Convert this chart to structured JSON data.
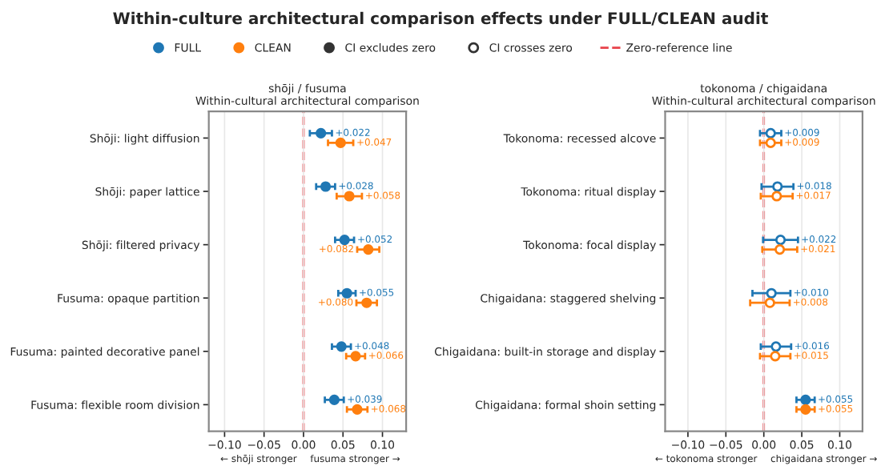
{
  "chart_data": [
    {
      "type": "scatter",
      "orientation": "horizontal",
      "title": "Within-culture architectural comparison effects under FULL/CLEAN audit",
      "subtitle": "shōji / fusuma\nWithin-cultural architectural comparison",
      "categories": [
        "Shōji: light diffusion",
        "Shōji: paper lattice",
        "Shōji: filtered privacy",
        "Fusuma: opaque partition",
        "Fusuma: painted decorative panel",
        "Fusuma: flexible room division"
      ],
      "series": [
        {
          "name": "FULL",
          "color": "#1f77b4",
          "values": [
            0.022,
            0.028,
            0.052,
            0.055,
            0.048,
            0.039
          ],
          "errors": [
            0.014,
            0.012,
            0.012,
            0.011,
            0.012,
            0.012
          ],
          "value_labels": [
            "+0.022",
            "+0.028",
            "+0.052",
            "+0.055",
            "+0.048",
            "+0.039"
          ]
        },
        {
          "name": "CLEAN",
          "color": "#ff7f0e",
          "values": [
            0.047,
            0.058,
            0.082,
            0.08,
            0.066,
            0.068
          ],
          "errors": [
            0.016,
            0.016,
            0.014,
            0.013,
            0.012,
            0.013
          ],
          "value_labels": [
            "+0.047",
            "+0.058",
            "+0.082",
            "+0.080",
            "+0.066",
            "+0.068"
          ]
        },
        {
          "name": "CI excludes zero",
          "color": "#333333",
          "values": [
            null,
            null,
            null,
            null,
            null,
            null
          ]
        },
        {
          "name": "CI crosses zero",
          "color": "#ffffff",
          "values": [
            null,
            null,
            null,
            null,
            null,
            null
          ]
        }
      ],
      "xlim": [
        -0.12,
        0.13
      ],
      "xticks": [
        {
          "value": -0.1,
          "label": "−0.10"
        },
        {
          "value": -0.05,
          "label": "−0.05"
        },
        {
          "value": 0,
          "label": "0.00"
        },
        {
          "value": 0.05,
          "label": "0.05"
        },
        {
          "value": 0.1,
          "label": "0.10"
        }
      ],
      "ref_lines": [
        {
          "axis": "x",
          "value": 0,
          "label": "Zero-reference line",
          "color": "#e8424a",
          "line_style": "dashed"
        }
      ],
      "annotations": [
        "← shōji stronger",
        "fusuma stronger →"
      ],
      "grid": "x",
      "legend": "top",
      "marker": "circle"
    },
    {
      "type": "scatter",
      "orientation": "horizontal",
      "subtitle": "tokonoma / chigaidana\nWithin-cultural architectural comparison",
      "categories": [
        "Tokonoma: recessed alcove",
        "Tokonoma: ritual display",
        "Tokonoma: focal display",
        "Chigaidana: staggered shelving",
        "Chigaidana: built-in storage and display",
        "Chigaidana: formal shoin setting"
      ],
      "series": [
        {
          "color": "#1f77b4",
          "values": [
            0.009,
            0.018,
            0.022,
            0.01,
            0.016,
            0.055
          ],
          "errors": [
            0.014,
            0.021,
            0.023,
            0.025,
            0.02,
            0.012
          ],
          "value_labels": [
            "+0.009",
            "+0.018",
            "+0.022",
            "+0.010",
            "+0.016",
            "+0.055"
          ]
        },
        {
          "color": "#ff7f0e",
          "values": [
            0.009,
            0.017,
            0.021,
            0.008,
            0.015,
            0.055
          ],
          "errors": [
            0.014,
            0.021,
            0.023,
            0.026,
            0.02,
            0.012
          ],
          "value_labels": [
            "+0.009",
            "+0.017",
            "+0.021",
            "+0.008",
            "+0.015",
            "+0.055"
          ]
        }
      ],
      "xlim": [
        -0.13,
        0.13
      ],
      "xticks": [
        {
          "value": -0.1,
          "label": "−0.10"
        },
        {
          "value": -0.05,
          "label": "−0.05"
        },
        {
          "value": 0,
          "label": "0.00"
        },
        {
          "value": 0.05,
          "label": "0.05"
        },
        {
          "value": 0.1,
          "label": "0.10"
        }
      ],
      "ref_lines": [
        {
          "axis": "x",
          "value": 0,
          "color": "#e8424a",
          "line_style": "dashed"
        }
      ],
      "annotations": [
        "← tokonoma stronger",
        "chigaidana stronger →"
      ],
      "grid": "x",
      "marker": "circle"
    }
  ]
}
